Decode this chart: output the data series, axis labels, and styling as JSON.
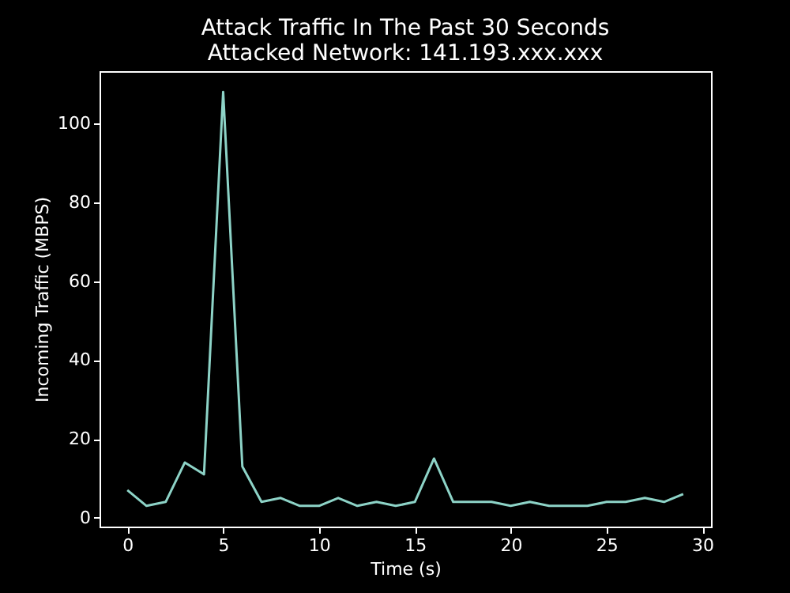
{
  "chart_data": {
    "type": "line",
    "title": "Attack Traffic In The Past 30 Seconds",
    "subtitle": "Attacked Network: 141.193.xxx.xxx",
    "xlabel": "Time (s)",
    "ylabel": "Incoming Traffic (MBPS)",
    "x": [
      0,
      1,
      2,
      3,
      4,
      5,
      6,
      7,
      8,
      9,
      10,
      11,
      12,
      13,
      14,
      15,
      16,
      17,
      18,
      19,
      20,
      21,
      22,
      23,
      24,
      25,
      26,
      27,
      28,
      29
    ],
    "series": [
      {
        "color": "#8dd3c7",
        "values": [
          7,
          3,
          4,
          14,
          11,
          108,
          13,
          4,
          5,
          3,
          3,
          5,
          3,
          4,
          3,
          4,
          15,
          4,
          4,
          4,
          3,
          4,
          3,
          3,
          3,
          4,
          4,
          5,
          4,
          6
        ]
      }
    ],
    "xlim": [
      -1.45,
      30.45
    ],
    "xticks": [
      0,
      5,
      10,
      15,
      20,
      25,
      30
    ],
    "ylim": [
      -2.25,
      113.25
    ],
    "yticks": [
      0,
      20,
      40,
      60,
      80,
      100
    ],
    "grid": false,
    "legend": false
  }
}
